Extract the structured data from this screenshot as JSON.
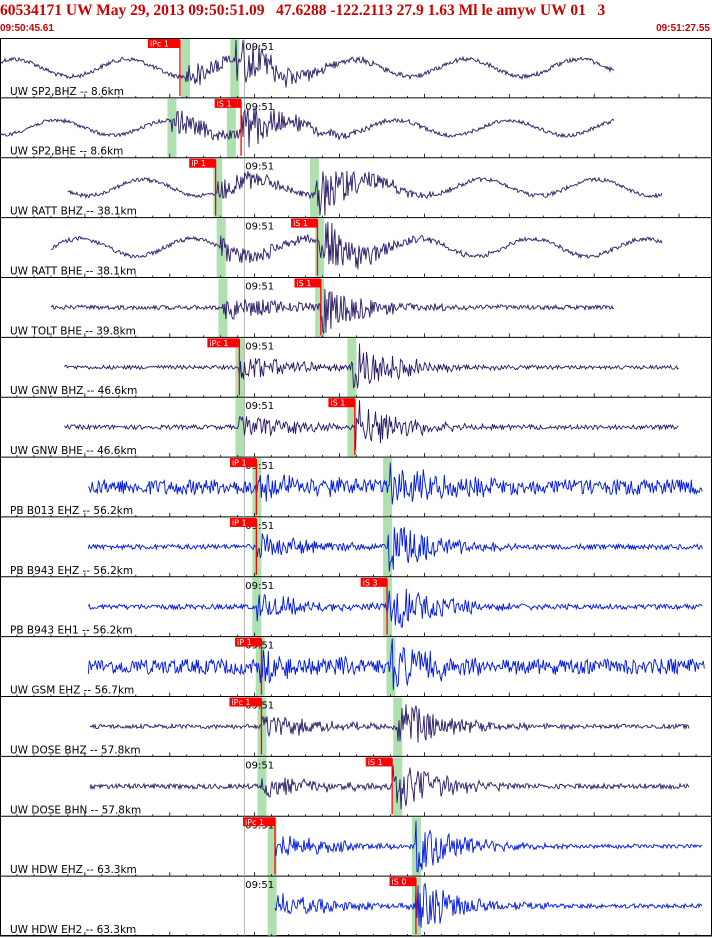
{
  "header": {
    "title": "60534171 UW May 29, 2013 09:50:51.09   47.6288 -122.2113 27.9 1.63 Ml le amyw UW 01   3",
    "start_time": "09:50:45.61",
    "end_time": "09:51:27.55"
  },
  "colors": {
    "header_red": "#cc0000",
    "trace_uw": "#2a1a66",
    "trace_pb": "#0018e0",
    "pick_red": "#ff0000",
    "theoretical_green": "#aee0b0",
    "grid": "#000000"
  },
  "chart_data": {
    "type": "line",
    "title": "60534171 UW May 29, 2013 09:50:51.09   47.6288 -122.2113 27.9 1.63 Ml le amyw UW 01   3",
    "x_range_seconds": [
      0,
      41.94
    ],
    "minute_marker": "09:51",
    "minute_marker_time_s": 14.39,
    "grid": "per-trace boxes",
    "channels": [
      {
        "label": "UW SP2,BHZ -- 8.6km",
        "color": "trace_uw",
        "data_start_s": 0.0,
        "data_end_s": 36.2,
        "pick": {
          "label": "iPc 1",
          "time_s": 10.6
        },
        "green": [
          10.9,
          13.8
        ],
        "amp": 0.35,
        "noise": "wave",
        "onset_s": 10.9,
        "s_s": 13.8,
        "minute_label_offset": 0
      },
      {
        "label": "UW SP2,BHE -- 8.6km",
        "color": "trace_uw",
        "data_start_s": 0.0,
        "data_end_s": 36.2,
        "pick": {
          "label": "iS 1",
          "time_s": 14.2
        },
        "green": [
          10.1,
          13.6
        ],
        "amp": 0.3,
        "noise": "wave",
        "onset_s": 10.1,
        "s_s": 14.2,
        "minute_label_offset": 0
      },
      {
        "label": "UW RATT BHZ -- 38.1km",
        "color": "trace_uw",
        "data_start_s": 4.0,
        "data_end_s": 39.0,
        "pick": {
          "label": "iP 1",
          "time_s": 12.7
        },
        "green": [
          12.8,
          18.5
        ],
        "amp": 0.32,
        "noise": "wave",
        "onset_s": 12.8,
        "s_s": 18.5,
        "minute_label_offset": 0
      },
      {
        "label": "UW RATT BHE -- 38.1km",
        "color": "trace_uw",
        "data_start_s": 3.0,
        "data_end_s": 39.0,
        "pick": {
          "label": "iS 1",
          "time_s": 18.7
        },
        "green": [
          13.0,
          18.8
        ],
        "amp": 0.35,
        "noise": "wave",
        "onset_s": 13.0,
        "s_s": 18.8,
        "minute_label_offset": 0
      },
      {
        "label": "UW TOLT BHE -- 39.8km",
        "color": "trace_uw",
        "data_start_s": 3.0,
        "data_end_s": 36.2,
        "pick": {
          "label": "iS 1",
          "time_s": 18.9
        },
        "green": [
          13.1,
          18.8
        ],
        "amp": 0.35,
        "noise": "flat",
        "onset_s": 13.1,
        "s_s": 18.9,
        "minute_label_offset": 0
      },
      {
        "label": "UW GNW BHZ -- 46.6km",
        "color": "trace_uw",
        "data_start_s": 3.8,
        "data_end_s": 40.0,
        "pick": {
          "label": "iPc 1",
          "time_s": 14.1
        },
        "green": [
          14.1,
          20.7
        ],
        "amp": 0.3,
        "noise": "flat",
        "onset_s": 14.1,
        "s_s": 20.7,
        "minute_label_offset": 0
      },
      {
        "label": "UW GNW BHE -- 46.6km",
        "color": "trace_uw",
        "data_start_s": 3.8,
        "data_end_s": 40.0,
        "pick": {
          "label": "iS 1",
          "time_s": 20.9
        },
        "green": [
          14.1,
          20.7
        ],
        "amp": 0.35,
        "noise": "flat",
        "onset_s": 14.1,
        "s_s": 20.9,
        "minute_label_offset": 0
      },
      {
        "label": "PB B013 EHZ -- 56.2km",
        "color": "trace_pb",
        "data_start_s": 5.2,
        "data_end_s": 41.4,
        "pick": {
          "label": "iP 1",
          "time_s": 15.1
        },
        "green": [
          15.1,
          22.8
        ],
        "amp": 0.45,
        "noise": "busy",
        "onset_s": 15.1,
        "s_s": 22.8,
        "minute_label_offset": 0
      },
      {
        "label": "PB B943 EHZ -- 56.2km",
        "color": "trace_pb",
        "data_start_s": 5.2,
        "data_end_s": 41.4,
        "pick": {
          "label": "iP 1",
          "time_s": 15.1
        },
        "green": [
          15.1,
          22.8
        ],
        "amp": 0.4,
        "noise": "flat",
        "onset_s": 15.1,
        "s_s": 22.8,
        "minute_label_offset": 0
      },
      {
        "label": "PB B943 EH1 -- 56.2km",
        "color": "trace_pb",
        "data_start_s": 5.2,
        "data_end_s": 41.4,
        "pick": {
          "label": "iS 3",
          "time_s": 22.8
        },
        "green": [
          15.1,
          22.8
        ],
        "amp": 0.4,
        "noise": "flat",
        "onset_s": 15.1,
        "s_s": 22.8,
        "minute_label_offset": 0
      },
      {
        "label": "UW GSM EHZ -- 56.7km",
        "color": "trace_pb",
        "data_start_s": 5.2,
        "data_end_s": 41.5,
        "pick": {
          "label": "iP 1",
          "time_s": 15.4
        },
        "green": [
          15.3,
          23.0
        ],
        "amp": 0.45,
        "noise": "busy",
        "onset_s": 15.3,
        "s_s": 23.0,
        "minute_label_offset": 0
      },
      {
        "label": "UW DOSE BHZ -- 57.8km",
        "color": "trace_uw",
        "data_start_s": 5.3,
        "data_end_s": 40.6,
        "pick": {
          "label": "iPc 1",
          "time_s": 15.4
        },
        "green": [
          15.4,
          23.4
        ],
        "amp": 0.35,
        "noise": "flat",
        "onset_s": 15.4,
        "s_s": 23.4,
        "minute_label_offset": 0
      },
      {
        "label": "UW DOSE BHN -- 57.8km",
        "color": "trace_uw",
        "data_start_s": 5.3,
        "data_end_s": 40.6,
        "pick": {
          "label": "iS 1",
          "time_s": 23.1
        },
        "green": [
          15.4,
          23.4
        ],
        "amp": 0.4,
        "noise": "flat",
        "onset_s": 15.4,
        "s_s": 23.1,
        "minute_label_offset": 0
      },
      {
        "label": "UW HDW EHZ -- 63.3km",
        "color": "trace_pb",
        "data_start_s": 16.2,
        "data_end_s": 41.4,
        "pick": {
          "label": "iPc 1",
          "time_s": 16.2
        },
        "green": [
          16.0,
          24.5
        ],
        "amp": 0.3,
        "noise": "flat",
        "onset_s": 16.2,
        "s_s": 24.5,
        "minute_label_offset": 0
      },
      {
        "label": "UW HDW EH2 -- 63.3km",
        "color": "trace_pb",
        "data_start_s": 16.2,
        "data_end_s": 41.4,
        "pick": {
          "label": "iS 0",
          "time_s": 24.5
        },
        "green": [
          16.0,
          24.5
        ],
        "amp": 0.35,
        "noise": "flat",
        "onset_s": 16.2,
        "s_s": 24.5,
        "minute_label_offset": 0
      }
    ]
  }
}
